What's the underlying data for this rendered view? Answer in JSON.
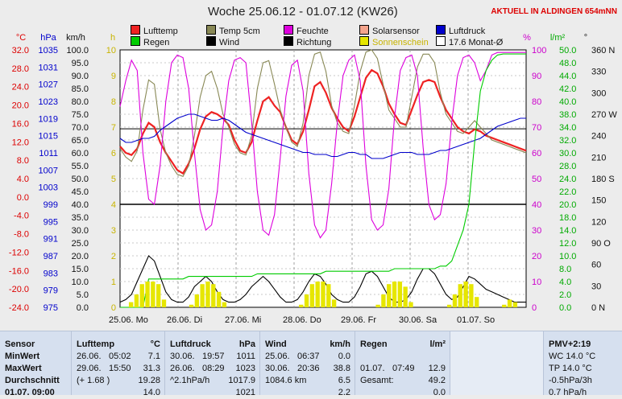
{
  "header": {
    "title": "Woche 25.06.12 - 01.07.12 (KW26)",
    "location": "AKTUELL IN ALDINGEN 654mNN"
  },
  "legend": [
    {
      "label": "Lufttemp",
      "color": "#ee2222",
      "row": 0,
      "col": 0
    },
    {
      "label": "Temp 5cm",
      "color": "#888855",
      "row": 0,
      "col": 1
    },
    {
      "label": "Feuchte",
      "color": "#dd00dd",
      "row": 0,
      "col": 2
    },
    {
      "label": "Solarsensor",
      "color": "#f4a48c",
      "row": 0,
      "col": 3
    },
    {
      "label": "Luftdruck",
      "color": "#0000cc",
      "row": 0,
      "col": 4
    },
    {
      "label": "Regen",
      "color": "#00cc00",
      "row": 1,
      "col": 0
    },
    {
      "label": "Wind",
      "color": "#000000",
      "row": 1,
      "col": 1
    },
    {
      "label": "Richtung",
      "color": "#000000",
      "row": 1,
      "col": 2
    },
    {
      "label": "Sonnenschein",
      "color": "#e6e600",
      "row": 1,
      "col": 3
    },
    {
      "label": "17.6 Monat-Ø",
      "color": "#ffffff",
      "row": 1,
      "col": 4
    }
  ],
  "chart_data": {
    "type": "line",
    "title": "Woche 25.06.12 - 01.07.12 (KW26)",
    "x_tick_labels": [
      "25.06. Mo",
      "26.06. Di",
      "27.06. Mi",
      "28.06. Do",
      "29.06. Fr",
      "30.06. Sa",
      "01.07. So"
    ],
    "axes": {
      "temperature": {
        "unit": "°C",
        "min": -24,
        "max": 36,
        "ticks": [
          "32.0",
          "28.0",
          "24.0",
          "20.0",
          "16.0",
          "12.0",
          "8.0",
          "4.0",
          "0.0",
          "-4.0",
          "-8.0",
          "-12.0",
          "-16.0",
          "-20.0",
          "-24.0"
        ]
      },
      "pressure": {
        "unit": "hPa",
        "min": 975,
        "max": 1039,
        "ticks": [
          "1035",
          "1031",
          "1027",
          "1023",
          "1019",
          "1015",
          "1011",
          "1007",
          "1003",
          "999",
          "995",
          "991",
          "987",
          "983",
          "979",
          "975"
        ]
      },
      "wind": {
        "unit": "km/h",
        "min": 0,
        "max": 100,
        "ticks": [
          "100.0",
          "95.0",
          "90.0",
          "85.0",
          "80.0",
          "75.0",
          "70.0",
          "65.0",
          "60.0",
          "55.0",
          "50.0",
          "45.0",
          "40.0",
          "35.0",
          "30.0",
          "25.0",
          "20.0",
          "15.0",
          "10.0",
          "5.0",
          "0.0"
        ]
      },
      "sunshine": {
        "unit": "h",
        "min": 0,
        "max": 10,
        "ticks": [
          "10",
          "9",
          "8",
          "7",
          "6",
          "5",
          "4",
          "3",
          "2",
          "1",
          "0"
        ]
      },
      "humidity": {
        "unit": "%",
        "min": 0,
        "max": 100,
        "ticks": [
          "100",
          "90",
          "80",
          "70",
          "60",
          "50",
          "40",
          "30",
          "20",
          "10",
          "0"
        ]
      },
      "rain": {
        "unit": "l/m²",
        "min": 0,
        "max": 50,
        "ticks": [
          "50.0",
          "48.0",
          "44.0",
          "42.0",
          "40.0",
          "38.0",
          "34.0",
          "32.0",
          "30.0",
          "28.0",
          "24.0",
          "22.0",
          "20.0",
          "18.0",
          "14.0",
          "12.0",
          "10.0",
          "8.0",
          "4.0",
          "2.0",
          "0.0"
        ]
      },
      "direction": {
        "unit": "°",
        "min": 0,
        "max": 360,
        "ticks": [
          "360 N",
          "330",
          "300",
          "270 W",
          "240",
          "210",
          "180 S",
          "150",
          "120",
          "90 O",
          "60",
          "30",
          "0 N"
        ]
      }
    },
    "series": [
      {
        "name": "Lufttemp",
        "axis": "temperature",
        "color": "#ee2222",
        "values": [
          13.5,
          12.0,
          11.5,
          13.0,
          16.5,
          19.0,
          18.0,
          14.5,
          12.0,
          10.0,
          8.0,
          7.2,
          9.5,
          13.0,
          17.5,
          20.5,
          21.5,
          21.0,
          20.0,
          18.5,
          15.0,
          12.5,
          12.0,
          14.5,
          19.5,
          24.0,
          25.0,
          23.0,
          21.5,
          18.0,
          15.0,
          14.0,
          17.0,
          22.0,
          27.5,
          28.5,
          26.0,
          22.5,
          20.0,
          18.0,
          17.0,
          20.5,
          25.0,
          29.5,
          31.3,
          30.5,
          27.5,
          23.5,
          21.0,
          19.0,
          18.5,
          22.0,
          25.5,
          28.5,
          29.0,
          28.5,
          25.0,
          22.0,
          20.0,
          18.0,
          17.0,
          16.5,
          17.5,
          17.0,
          16.0,
          15.5,
          15.0,
          14.5,
          14.0,
          13.5,
          13.0,
          12.5
        ]
      },
      {
        "name": "Temp 5cm",
        "axis": "temperature",
        "color": "#888855",
        "values": [
          13.0,
          11.0,
          10.0,
          12.5,
          22.0,
          29.0,
          28.0,
          17.5,
          12.0,
          9.0,
          7.0,
          6.5,
          9.0,
          16.0,
          25.0,
          30.0,
          31.0,
          27.0,
          21.0,
          18.0,
          14.0,
          12.0,
          11.5,
          16.0,
          27.0,
          33.0,
          33.5,
          28.0,
          22.0,
          18.0,
          14.5,
          13.5,
          19.0,
          30.0,
          35.0,
          35.5,
          31.0,
          23.0,
          19.0,
          17.0,
          16.5,
          23.0,
          31.0,
          35.5,
          36.0,
          34.0,
          28.0,
          22.0,
          20.0,
          18.0,
          18.0,
          25.0,
          32.0,
          35.0,
          35.0,
          33.0,
          26.0,
          21.0,
          19.0,
          17.0,
          16.5,
          18.0,
          19.5,
          18.0,
          16.5,
          15.0,
          14.5,
          14.0,
          13.5,
          13.0,
          12.5,
          12.0
        ]
      },
      {
        "name": "Feuchte",
        "axis": "humidity",
        "color": "#dd00dd",
        "values": [
          78,
          88,
          96,
          92,
          60,
          42,
          40,
          55,
          80,
          95,
          98,
          97,
          85,
          60,
          38,
          30,
          32,
          45,
          70,
          88,
          96,
          97,
          95,
          72,
          45,
          30,
          28,
          36,
          58,
          82,
          94,
          96,
          84,
          52,
          32,
          27,
          30,
          48,
          72,
          90,
          96,
          98,
          88,
          55,
          34,
          30,
          32,
          46,
          74,
          92,
          97,
          98,
          90,
          62,
          40,
          34,
          36,
          48,
          72,
          90,
          97,
          98,
          95,
          88,
          92,
          98,
          99,
          99,
          99,
          99,
          99,
          99
        ]
      },
      {
        "name": "Luftdruck",
        "axis": "pressure",
        "color": "#0000cc",
        "values": [
          1017,
          1016,
          1016,
          1016.5,
          1017,
          1017,
          1017.5,
          1019,
          1020,
          1021,
          1022,
          1022.5,
          1023,
          1023,
          1022.5,
          1022,
          1021.5,
          1021.5,
          1022,
          1021.5,
          1020.5,
          1019.5,
          1018.5,
          1018,
          1017.5,
          1017,
          1016.5,
          1016,
          1015.5,
          1015,
          1014.5,
          1014,
          1013.5,
          1013.5,
          1013,
          1013,
          1013,
          1012.5,
          1012.5,
          1013,
          1013.5,
          1013.5,
          1013,
          1013,
          1012,
          1012,
          1012,
          1012.5,
          1013,
          1013.5,
          1013.5,
          1013.5,
          1013,
          1013,
          1013,
          1013.5,
          1014,
          1014,
          1014.5,
          1015,
          1015.5,
          1016,
          1016.5,
          1017,
          1018,
          1019,
          1020,
          1020.5,
          1021,
          1021.5,
          1022,
          1022
        ]
      },
      {
        "name": "Wind",
        "axis": "wind",
        "color": "#000000",
        "values": [
          2,
          3,
          5,
          10,
          15,
          20,
          18,
          12,
          6,
          3,
          2,
          2,
          4,
          8,
          10,
          12,
          10,
          6,
          3,
          2,
          2,
          3,
          5,
          8,
          10,
          12,
          10,
          7,
          4,
          2,
          2,
          3,
          6,
          10,
          13,
          12,
          9,
          5,
          3,
          2,
          2,
          4,
          8,
          13,
          14,
          12,
          8,
          4,
          2,
          2,
          3,
          6,
          11,
          15,
          15,
          13,
          9,
          5,
          3,
          4,
          8,
          12,
          11,
          9,
          7,
          6,
          5,
          4,
          3,
          2,
          2,
          2
        ]
      },
      {
        "name": "Regen",
        "axis": "rain",
        "color": "#00cc00",
        "values": [
          0,
          0,
          0,
          0,
          0,
          5.5,
          5.5,
          5.5,
          5.5,
          5.5,
          5.5,
          5.5,
          6.0,
          6.0,
          6.0,
          6.0,
          6.0,
          6.0,
          6.0,
          6.0,
          6.0,
          6.0,
          6.0,
          6.0,
          6.5,
          6.5,
          6.5,
          6.5,
          6.5,
          6.5,
          6.5,
          6.5,
          6.5,
          6.5,
          6.5,
          6.5,
          7.0,
          7.0,
          7.0,
          7.0,
          7.0,
          7.0,
          7.0,
          7.0,
          7.0,
          7.0,
          7.0,
          7.0,
          7.5,
          7.5,
          7.5,
          7.5,
          7.5,
          7.5,
          7.5,
          7.5,
          8.0,
          8.0,
          9.0,
          12.0,
          15.0,
          20.0,
          32.0,
          42.0,
          46.0,
          48.0,
          49.0,
          49.2,
          49.2,
          49.2,
          49.2,
          49.2
        ]
      },
      {
        "name": "Sonnenschein",
        "axis": "sunshine",
        "color": "#e6e600",
        "values": [
          0,
          0,
          0.2,
          0.5,
          0.9,
          1.0,
          1.0,
          0.9,
          0.3,
          0,
          0,
          0,
          0,
          0.1,
          0.5,
          0.9,
          1.0,
          0.9,
          0.6,
          0.2,
          0,
          0,
          0,
          0,
          0,
          0,
          0,
          0,
          0,
          0,
          0,
          0,
          0,
          0.1,
          0.5,
          0.9,
          1.0,
          1.0,
          0.9,
          0.3,
          0,
          0,
          0,
          0,
          0,
          0,
          0,
          0.1,
          0.5,
          0.9,
          1.0,
          1.0,
          0.8,
          0.2,
          0,
          0,
          0,
          0,
          0,
          0,
          0.1,
          0.5,
          0.9,
          1.0,
          0.9,
          0.4,
          0,
          0,
          0,
          0,
          0.1,
          0.3,
          0.2,
          0,
          0
        ]
      }
    ],
    "reference_lines": [
      {
        "label": "17.6 Monat-Ø",
        "axis": "temperature",
        "value": 17.6
      },
      {
        "axis": "temperature",
        "value": 0.0
      }
    ],
    "grid": true
  },
  "stats": {
    "labels": {
      "sensor": "Sensor",
      "min": "MinWert",
      "max": "MaxWert",
      "avg": "Durchschnitt",
      "extra": "01.07. 09:00"
    },
    "lufttemp": {
      "header": "Lufttemp",
      "unit": "°C",
      "min_date": "26.06.",
      "min_time": "05:02",
      "min_val": "7.1",
      "max_date": "29.06.",
      "max_time": "15:50",
      "max_val": "31.3",
      "avg_note": "(+ 1.68 )",
      "avg_val": "19.28",
      "extra_val": "14.0"
    },
    "luftdruck": {
      "header": "Luftdruck",
      "unit": "hPa",
      "min_date": "30.06.",
      "min_time": "19:57",
      "min_val": "1011",
      "max_date": "26.06.",
      "max_time": "08:29",
      "max_val": "1023",
      "avg_note": "^2.1hPa/h",
      "avg_val": "1017.9",
      "extra_val": "1021"
    },
    "wind": {
      "header": "Wind",
      "unit": "km/h",
      "min_date": "25.06.",
      "min_time": "06:37",
      "min_val": "0.0",
      "max_date": "30.06.",
      "max_time": "20:36",
      "max_val": "38.8",
      "avg_note": "1084.6 km",
      "avg_val": "6.5",
      "extra_val": "2.2"
    },
    "regen": {
      "header": "Regen",
      "unit": "l/m²",
      "min_date": "",
      "min_time": "",
      "min_val": "",
      "max_date": "01.07.",
      "max_time": "07:49",
      "max_val": "12.9",
      "avg_note": "Gesamt:",
      "avg_val": "49.2",
      "extra_val": "0.0"
    },
    "pmv": {
      "header": "PMV+2:19",
      "l1": "WC 14.0 °C",
      "l2": "TP 14.0 °C",
      "l3": "-0.5hPa/3h",
      "l4": "0.7 hPa/h"
    }
  }
}
